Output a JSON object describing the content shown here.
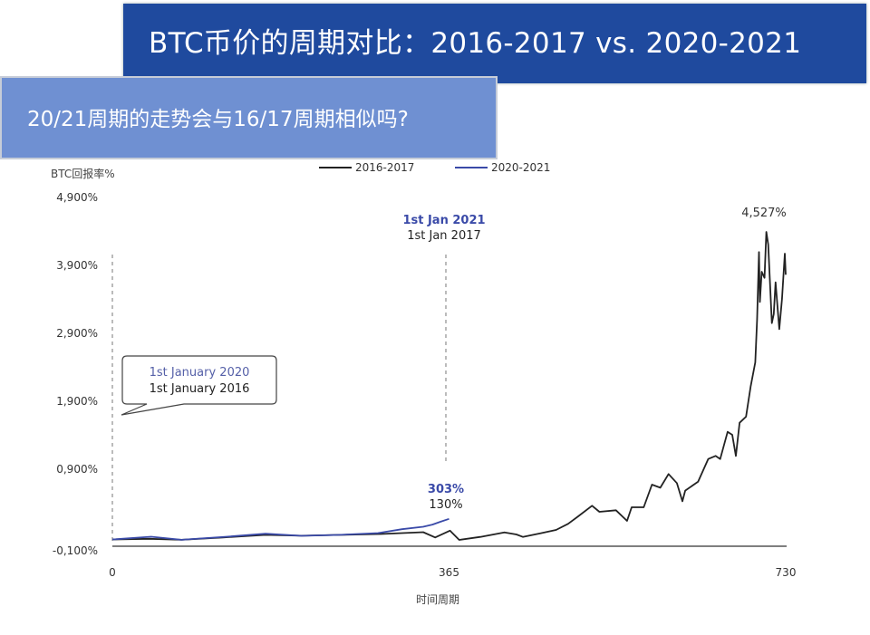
{
  "header": {
    "title": "BTC币价的周期对比：2016-2017 vs. 2020-2021",
    "subtitle": "20/21周期的走势会与16/17周期相似吗?"
  },
  "colors": {
    "title_bg": "#1f4a9e",
    "subtitle_bg": "#6f90d2",
    "series_2016": "#222222",
    "series_2020": "#3a4aa8"
  },
  "chart_data": {
    "type": "line",
    "ylabel": "BTC回报率%",
    "xlabel": "时间周期",
    "xlim": [
      0,
      730
    ],
    "ylim": [
      -100,
      4900
    ],
    "x_ticks": [
      {
        "v": 0,
        "label": "0"
      },
      {
        "v": 365,
        "label": "365"
      },
      {
        "v": 730,
        "label": "730"
      }
    ],
    "y_ticks": [
      {
        "v": -100,
        "label": "-0,100%"
      },
      {
        "v": 900,
        "label": "0,900%"
      },
      {
        "v": 1900,
        "label": "1,900%"
      },
      {
        "v": 2900,
        "label": "2,900%"
      },
      {
        "v": 3900,
        "label": "3,900%"
      },
      {
        "v": 4900,
        "label": "4,900%"
      }
    ],
    "legend": {
      "placement": "top-center"
    },
    "series": [
      {
        "name": "2016-2017",
        "color": "#222222",
        "points": [
          [
            0,
            0
          ],
          [
            40,
            10
          ],
          [
            75,
            -5
          ],
          [
            120,
            30
          ],
          [
            166,
            67
          ],
          [
            205,
            55
          ],
          [
            245,
            67
          ],
          [
            291,
            80
          ],
          [
            337,
            107
          ],
          [
            350,
            29
          ],
          [
            366,
            130
          ],
          [
            376,
            -7
          ],
          [
            399,
            37
          ],
          [
            425,
            104
          ],
          [
            438,
            73
          ],
          [
            445,
            37
          ],
          [
            464,
            91
          ],
          [
            481,
            140
          ],
          [
            494,
            229
          ],
          [
            505,
            340
          ],
          [
            520,
            496
          ],
          [
            528,
            407
          ],
          [
            546,
            429
          ],
          [
            558,
            273
          ],
          [
            563,
            473
          ],
          [
            576,
            473
          ],
          [
            585,
            807
          ],
          [
            594,
            762
          ],
          [
            603,
            963
          ],
          [
            612,
            829
          ],
          [
            618,
            562
          ],
          [
            621,
            718
          ],
          [
            635,
            851
          ],
          [
            646,
            1184
          ],
          [
            654,
            1229
          ],
          [
            659,
            1184
          ],
          [
            667,
            1584
          ],
          [
            672,
            1540
          ],
          [
            676,
            1229
          ],
          [
            680,
            1717
          ],
          [
            687,
            1807
          ],
          [
            692,
            2251
          ],
          [
            697,
            2607
          ],
          [
            699,
            3229
          ],
          [
            701,
            4229
          ],
          [
            702,
            3496
          ],
          [
            704,
            3940
          ],
          [
            707,
            3851
          ],
          [
            709,
            4527
          ],
          [
            711,
            4340
          ],
          [
            715,
            3184
          ],
          [
            717,
            3318
          ],
          [
            719,
            3784
          ],
          [
            723,
            3096
          ],
          [
            726,
            3540
          ],
          [
            729,
            4207
          ],
          [
            730,
            3896
          ]
        ]
      },
      {
        "name": "2020-2021",
        "color": "#3a4aa8",
        "points": [
          [
            0,
            0
          ],
          [
            42,
            40
          ],
          [
            75,
            -5
          ],
          [
            124,
            40
          ],
          [
            166,
            84
          ],
          [
            205,
            53
          ],
          [
            245,
            67
          ],
          [
            288,
            93
          ],
          [
            314,
            151
          ],
          [
            337,
            187
          ],
          [
            347,
            218
          ],
          [
            356,
            262
          ],
          [
            365,
            303
          ]
        ]
      }
    ],
    "annotations": {
      "start_2020": "1st January 2020",
      "start_2016": "1st January 2016",
      "mid_2021": "1st Jan 2021",
      "mid_2017": "1st Jan 2017",
      "value_2020_365": "303%",
      "value_2016_365": "130%",
      "peak": "4,527%"
    }
  }
}
